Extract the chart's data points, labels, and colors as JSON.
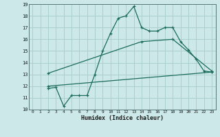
{
  "background_color": "#cce8e8",
  "grid_color": "#aacfcf",
  "line_color": "#1a6b5a",
  "xlabel": "Humidex (Indice chaleur)",
  "xlim": [
    -0.5,
    23.5
  ],
  "ylim": [
    10,
    19
  ],
  "xticks": [
    0,
    1,
    2,
    3,
    4,
    5,
    6,
    7,
    8,
    9,
    10,
    11,
    12,
    13,
    14,
    15,
    16,
    17,
    18,
    19,
    20,
    21,
    22,
    23
  ],
  "yticks": [
    10,
    11,
    12,
    13,
    14,
    15,
    16,
    17,
    18,
    19
  ],
  "series": [
    {
      "x": [
        2,
        3,
        4,
        5,
        6,
        7,
        8,
        9,
        10,
        11,
        12,
        13,
        14,
        15,
        16,
        17,
        18,
        19,
        20,
        21,
        22,
        23
      ],
      "y": [
        11.8,
        11.9,
        10.3,
        11.2,
        11.2,
        11.2,
        13.0,
        15.0,
        16.5,
        17.8,
        18.0,
        18.8,
        17.0,
        16.7,
        16.7,
        17.0,
        17.0,
        15.8,
        15.1,
        14.3,
        13.3,
        13.2
      ]
    },
    {
      "x": [
        2,
        14,
        18,
        23
      ],
      "y": [
        13.1,
        15.8,
        16.0,
        13.3
      ]
    },
    {
      "x": [
        2,
        23
      ],
      "y": [
        12.0,
        13.2
      ]
    }
  ]
}
